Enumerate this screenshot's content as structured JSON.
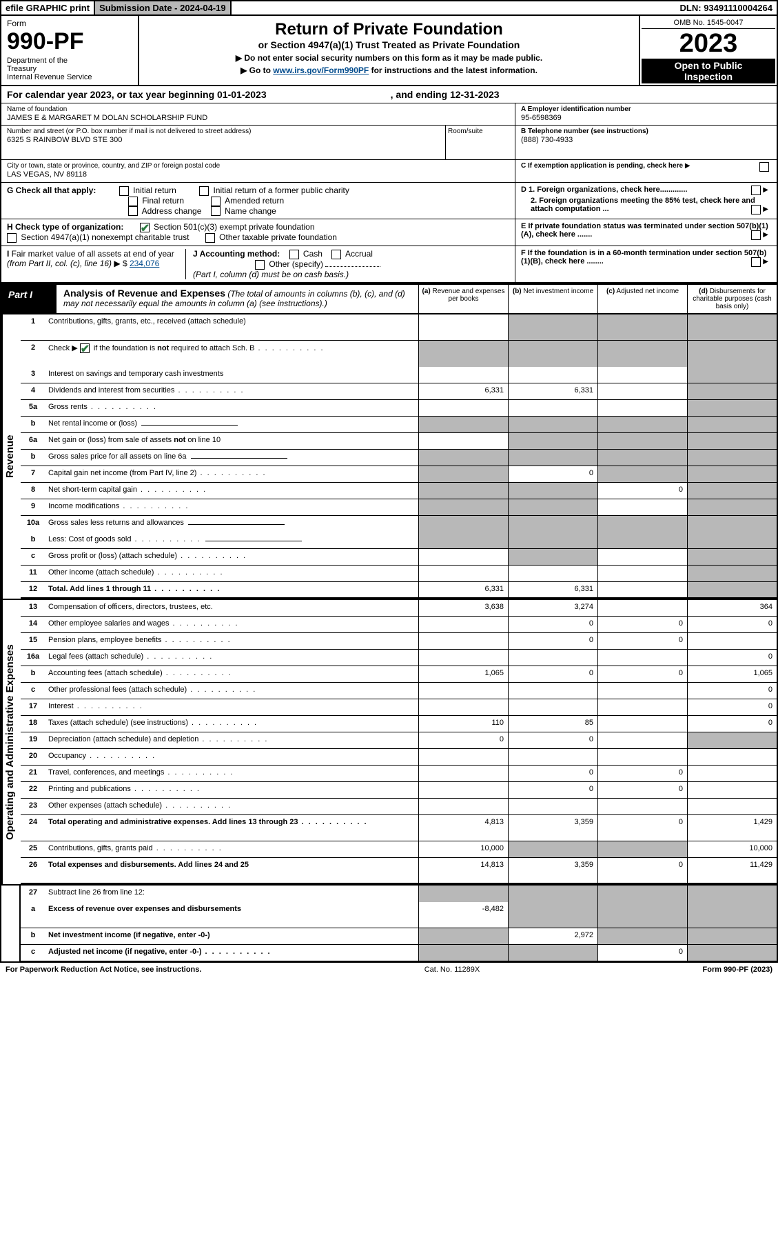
{
  "topbar": {
    "efile": "efile GRAPHIC print",
    "submission": "Submission Date - 2024-04-19",
    "dln": "DLN: 93491110004264"
  },
  "header": {
    "form_label": "Form",
    "form_number": "990-PF",
    "dept": "Department of the Treasury\nInternal Revenue Service",
    "title": "Return of Private Foundation",
    "subtitle": "or Section 4947(a)(1) Trust Treated as Private Foundation",
    "note1": "▶ Do not enter social security numbers on this form as it may be made public.",
    "note2_pre": "▶ Go to ",
    "note2_link": "www.irs.gov/Form990PF",
    "note2_post": " for instructions and the latest information.",
    "omb": "OMB No. 1545-0047",
    "year": "2023",
    "open": "Open to Public Inspection"
  },
  "calendar": {
    "text": "For calendar year 2023, or tax year beginning 01-01-2023",
    "ending": ", and ending 12-31-2023"
  },
  "meta": {
    "name_label": "Name of foundation",
    "name": "JAMES E & MARGARET M DOLAN SCHOLARSHIP FUND",
    "addr_label": "Number and street (or P.O. box number if mail is not delivered to street address)",
    "addr": "6325 S RAINBOW BLVD STE 300",
    "room_label": "Room/suite",
    "city_label": "City or town, state or province, country, and ZIP or foreign postal code",
    "city": "LAS VEGAS, NV  89118",
    "ein_label": "A Employer identification number",
    "ein": "95-6598369",
    "phone_label": "B Telephone number (see instructions)",
    "phone": "(888) 730-4933",
    "c_label": "C If exemption application is pending, check here",
    "d1": "D 1. Foreign organizations, check here.............",
    "d2": "2. Foreign organizations meeting the 85% test, check here and attach computation ...",
    "e_label": "E  If private foundation status was terminated under section 507(b)(1)(A), check here .......",
    "f_label": "F  If the foundation is in a 60-month termination under section 507(b)(1)(B), check here ........"
  },
  "g": {
    "label": "G Check all that apply:",
    "initial": "Initial return",
    "initial_former": "Initial return of a former public charity",
    "final": "Final return",
    "amended": "Amended return",
    "addr_change": "Address change",
    "name_change": "Name change"
  },
  "h": {
    "label": "H Check type of organization:",
    "opt1": "Section 501(c)(3) exempt private foundation",
    "opt2": "Section 4947(a)(1) nonexempt charitable trust",
    "opt3": "Other taxable private foundation"
  },
  "i": {
    "label": "I Fair market value of all assets at end of year (from Part II, col. (c), line 16) ▶ $",
    "value": "234,076"
  },
  "j": {
    "label": "J Accounting method:",
    "cash": "Cash",
    "accrual": "Accrual",
    "other": "Other (specify)",
    "note": "(Part I, column (d) must be on cash basis.)"
  },
  "part1": {
    "label": "Part I",
    "title": "Analysis of Revenue and Expenses",
    "desc": "(The total of amounts in columns (b), (c), and (d) may not necessarily equal the amounts in column (a) (see instructions).)",
    "col_a": "(a)   Revenue and expenses per books",
    "col_b": "(b)   Net investment income",
    "col_c": "(c)   Adjusted net income",
    "col_d": "(d)  Disbursements for charitable purposes (cash basis only)"
  },
  "section_labels": {
    "revenue": "Revenue",
    "expenses": "Operating and Administrative Expenses"
  },
  "rows": [
    {
      "num": "1",
      "desc": "Contributions, gifts, grants, etc., received (attach schedule)",
      "a": "",
      "b_s": true,
      "c_s": true,
      "d_s": true,
      "tall": true
    },
    {
      "num": "2",
      "desc": "Check ▶ ☑ if the foundation is not required to attach Sch. B",
      "dots": true,
      "a_s": true,
      "b_s": true,
      "c_s": true,
      "d_s": true,
      "tall": true,
      "nb": true
    },
    {
      "num": "3",
      "desc": "Interest on savings and temporary cash investments",
      "a": "",
      "b": "",
      "c": "",
      "d_s": true
    },
    {
      "num": "4",
      "desc": "Dividends and interest from securities",
      "dots": true,
      "a": "6,331",
      "b": "6,331",
      "c": "",
      "d_s": true
    },
    {
      "num": "5a",
      "desc": "Gross rents",
      "dots": true,
      "a": "",
      "b": "",
      "c": "",
      "d_s": true
    },
    {
      "num": "b",
      "desc": "Net rental income or (loss)",
      "inline_box": true,
      "a_s": true,
      "b_s": true,
      "c_s": true,
      "d_s": true
    },
    {
      "num": "6a",
      "desc": "Net gain or (loss) from sale of assets not on line 10",
      "a": "",
      "b_s": true,
      "c_s": true,
      "d_s": true
    },
    {
      "num": "b",
      "desc": "Gross sales price for all assets on line 6a",
      "inline_box": true,
      "a_s": true,
      "b_s": true,
      "c_s": true,
      "d_s": true
    },
    {
      "num": "7",
      "desc": "Capital gain net income (from Part IV, line 2)",
      "dots": true,
      "a_s": true,
      "b": "0",
      "c_s": true,
      "d_s": true
    },
    {
      "num": "8",
      "desc": "Net short-term capital gain",
      "dots": true,
      "a_s": true,
      "b_s": true,
      "c": "0",
      "d_s": true
    },
    {
      "num": "9",
      "desc": "Income modifications",
      "dots": true,
      "a_s": true,
      "b_s": true,
      "c": "",
      "d_s": true
    },
    {
      "num": "10a",
      "desc": "Gross sales less returns and allowances",
      "inline_box": true,
      "a_s": true,
      "b_s": true,
      "c_s": true,
      "d_s": true,
      "nb": true
    },
    {
      "num": "b",
      "desc": "Less: Cost of goods sold",
      "dots": true,
      "inline_box": true,
      "a_s": true,
      "b_s": true,
      "c_s": true,
      "d_s": true
    },
    {
      "num": "c",
      "desc": "Gross profit or (loss) (attach schedule)",
      "dots": true,
      "a": "",
      "b_s": true,
      "c": "",
      "d_s": true
    },
    {
      "num": "11",
      "desc": "Other income (attach schedule)",
      "dots": true,
      "a": "",
      "b": "",
      "c": "",
      "d_s": true
    },
    {
      "num": "12",
      "desc": "Total. Add lines 1 through 11",
      "dots": true,
      "bold": true,
      "a": "6,331",
      "b": "6,331",
      "c": "",
      "d_s": true,
      "thick": true
    }
  ],
  "exp_rows": [
    {
      "num": "13",
      "desc": "Compensation of officers, directors, trustees, etc.",
      "a": "3,638",
      "b": "3,274",
      "c": "",
      "d": "364"
    },
    {
      "num": "14",
      "desc": "Other employee salaries and wages",
      "dots": true,
      "a": "",
      "b": "0",
      "c": "0",
      "d": "0"
    },
    {
      "num": "15",
      "desc": "Pension plans, employee benefits",
      "dots": true,
      "a": "",
      "b": "0",
      "c": "0",
      "d": ""
    },
    {
      "num": "16a",
      "desc": "Legal fees (attach schedule)",
      "dots": true,
      "a": "",
      "b": "",
      "c": "",
      "d": "0"
    },
    {
      "num": "b",
      "desc": "Accounting fees (attach schedule)",
      "dots": true,
      "a": "1,065",
      "b": "0",
      "c": "0",
      "d": "1,065"
    },
    {
      "num": "c",
      "desc": "Other professional fees (attach schedule)",
      "dots": true,
      "a": "",
      "b": "",
      "c": "",
      "d": "0"
    },
    {
      "num": "17",
      "desc": "Interest",
      "dots": true,
      "a": "",
      "b": "",
      "c": "",
      "d": "0"
    },
    {
      "num": "18",
      "desc": "Taxes (attach schedule) (see instructions)",
      "dots": true,
      "a": "110",
      "b": "85",
      "c": "",
      "d": "0"
    },
    {
      "num": "19",
      "desc": "Depreciation (attach schedule) and depletion",
      "dots": true,
      "a": "0",
      "b": "0",
      "c": "",
      "d_s": true
    },
    {
      "num": "20",
      "desc": "Occupancy",
      "dots": true,
      "a": "",
      "b": "",
      "c": "",
      "d": ""
    },
    {
      "num": "21",
      "desc": "Travel, conferences, and meetings",
      "dots": true,
      "a": "",
      "b": "0",
      "c": "0",
      "d": ""
    },
    {
      "num": "22",
      "desc": "Printing and publications",
      "dots": true,
      "a": "",
      "b": "0",
      "c": "0",
      "d": ""
    },
    {
      "num": "23",
      "desc": "Other expenses (attach schedule)",
      "dots": true,
      "a": "",
      "b": "",
      "c": "",
      "d": ""
    },
    {
      "num": "24",
      "desc": "Total operating and administrative expenses. Add lines 13 through 23",
      "dots": true,
      "bold": true,
      "a": "4,813",
      "b": "3,359",
      "c": "0",
      "d": "1,429",
      "tall": true
    },
    {
      "num": "25",
      "desc": "Contributions, gifts, grants paid",
      "dots": true,
      "a": "10,000",
      "b_s": true,
      "c_s": true,
      "d": "10,000"
    },
    {
      "num": "26",
      "desc": "Total expenses and disbursements. Add lines 24 and 25",
      "bold": true,
      "a": "14,813",
      "b": "3,359",
      "c": "0",
      "d": "11,429",
      "tall": true,
      "thick": true
    }
  ],
  "final_rows": [
    {
      "num": "27",
      "desc": "Subtract line 26 from line 12:",
      "a_s": true,
      "b_s": true,
      "c_s": true,
      "d_s": true,
      "nb": true
    },
    {
      "num": "a",
      "desc": "Excess of revenue over expenses and disbursements",
      "bold": true,
      "a": "-8,482",
      "b_s": true,
      "c_s": true,
      "d_s": true,
      "tall": true
    },
    {
      "num": "b",
      "desc": "Net investment income (if negative, enter -0-)",
      "bold": true,
      "a_s": true,
      "b": "2,972",
      "c_s": true,
      "d_s": true
    },
    {
      "num": "c",
      "desc": "Adjusted net income (if negative, enter -0-)",
      "bold": true,
      "dots": true,
      "a_s": true,
      "b_s": true,
      "c": "0",
      "d_s": true
    }
  ],
  "footer": {
    "left": "For Paperwork Reduction Act Notice, see instructions.",
    "mid": "Cat. No. 11289X",
    "right": "Form 990-PF (2023)"
  }
}
